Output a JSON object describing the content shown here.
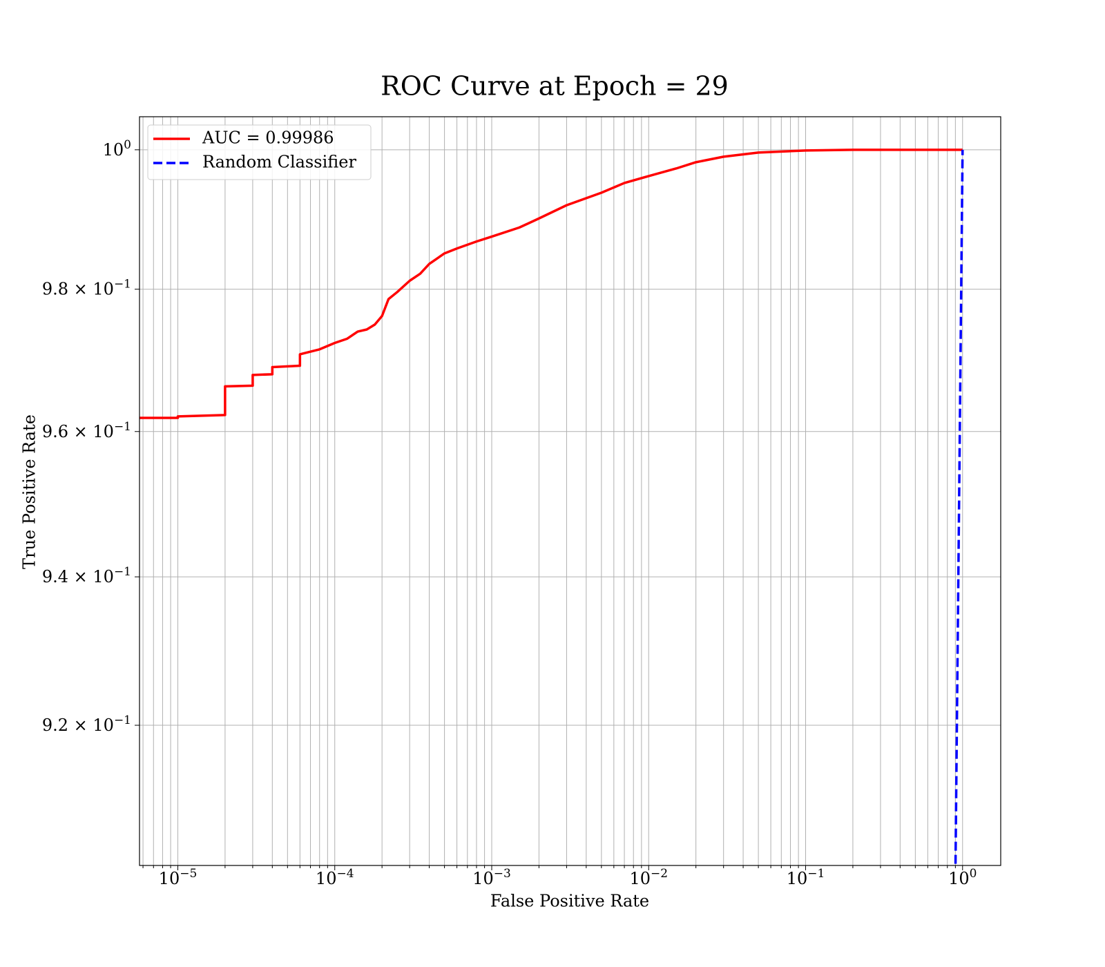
{
  "chart_data": {
    "type": "line",
    "title": "ROC Curve at Epoch = 29",
    "xlabel": "False Positive Rate",
    "ylabel": "True Positive Rate",
    "xscale": "log",
    "yscale": "log",
    "xlim": [
      5.7e-06,
      1.75
    ],
    "ylim": [
      0.9015,
      1.0048
    ],
    "grid": true,
    "legend_position": "upper-left",
    "xticks": [
      {
        "value": 1e-05,
        "base": "10",
        "exp": "−5"
      },
      {
        "value": 0.0001,
        "base": "10",
        "exp": "−4"
      },
      {
        "value": 0.001,
        "base": "10",
        "exp": "−3"
      },
      {
        "value": 0.01,
        "base": "10",
        "exp": "−2"
      },
      {
        "value": 0.1,
        "base": "10",
        "exp": "−1"
      },
      {
        "value": 1,
        "base": "10",
        "exp": "0"
      }
    ],
    "yticks": [
      {
        "value": 1.0,
        "mant": "",
        "base": "10",
        "exp": "0"
      },
      {
        "value": 0.98,
        "mant": "9.8 × ",
        "base": "10",
        "exp": "−1"
      },
      {
        "value": 0.96,
        "mant": "9.6 × ",
        "base": "10",
        "exp": "−1"
      },
      {
        "value": 0.94,
        "mant": "9.4 × ",
        "base": "10",
        "exp": "−1"
      },
      {
        "value": 0.92,
        "mant": "9.2 × ",
        "base": "10",
        "exp": "−1"
      }
    ],
    "series": [
      {
        "name": "AUC = 0.99986",
        "color": "#ff0000",
        "style": "solid",
        "x": [
          5.7e-06,
          1e-05,
          1e-05,
          2e-05,
          2e-05,
          3e-05,
          3e-05,
          4e-05,
          4e-05,
          6e-05,
          6e-05,
          8e-05,
          0.0001,
          0.00012,
          0.00014,
          0.00016,
          0.00018,
          0.0002,
          0.00022,
          0.00025,
          0.0003,
          0.00035,
          0.0004,
          0.0005,
          0.0006,
          0.0008,
          0.001,
          0.0015,
          0.002,
          0.003,
          0.005,
          0.007,
          0.01,
          0.015,
          0.02,
          0.03,
          0.05,
          0.1,
          0.2,
          0.5,
          1.0
        ],
        "y": [
          0.9619,
          0.9619,
          0.9621,
          0.9623,
          0.9663,
          0.9664,
          0.9679,
          0.968,
          0.969,
          0.9692,
          0.9708,
          0.9715,
          0.9724,
          0.973,
          0.974,
          0.9743,
          0.975,
          0.9762,
          0.9786,
          0.9796,
          0.9812,
          0.9822,
          0.9836,
          0.9851,
          0.9858,
          0.9868,
          0.9875,
          0.9888,
          0.9901,
          0.992,
          0.9938,
          0.9952,
          0.9962,
          0.9973,
          0.9982,
          0.999,
          0.9996,
          0.9999,
          1.0,
          1.0,
          1.0
        ]
      },
      {
        "name": "Random Classifier",
        "color": "#0000ff",
        "style": "dashed",
        "x": [
          0.9,
          1.0
        ],
        "y": [
          0.9,
          1.0
        ]
      }
    ]
  }
}
